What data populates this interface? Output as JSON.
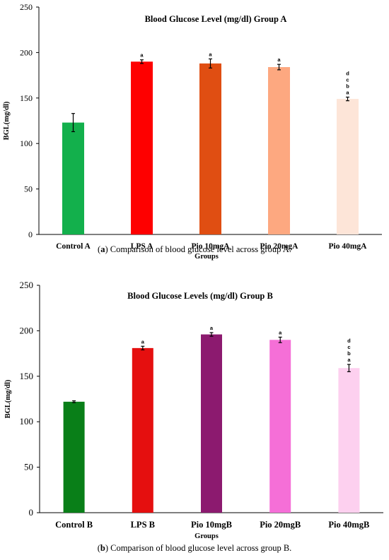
{
  "chart_data": [
    {
      "type": "bar",
      "title": "Blood Glucose Level (mg/dl) Group A",
      "xlabel": "Groups",
      "ylabel": "BGL(mg/dl)",
      "ylim": [
        0,
        250
      ],
      "yticks": [
        "0",
        "50",
        "100",
        "150",
        "200",
        "250"
      ],
      "grid": false,
      "categories": [
        "Control A",
        "LPS A",
        "Pio 10mgA",
        "Pio 20mgA",
        "Pio 40mgA"
      ],
      "values": [
        123,
        190,
        188,
        184,
        149
      ],
      "errors": [
        10,
        2,
        5,
        3,
        2
      ],
      "colors": [
        "#13b04c",
        "#fe0000",
        "#e04e12",
        "#fda880",
        "#fde5d8"
      ],
      "annotations": [
        [],
        [
          "a"
        ],
        [
          "a"
        ],
        [
          "a"
        ],
        [
          "d",
          "c",
          "b",
          "a"
        ]
      ]
    },
    {
      "type": "bar",
      "title": "Blood Glucose Levels (mg/dl) Group B",
      "xlabel": "Groups",
      "ylabel": "BGL(mg/dl)",
      "ylim": [
        0,
        250
      ],
      "yticks": [
        "0",
        "50",
        "100",
        "150",
        "200",
        "250"
      ],
      "grid": false,
      "categories": [
        "Control B",
        "LPS B",
        "Pio 10mgB",
        "Pio 20mgB",
        "Pio 40mgB"
      ],
      "values": [
        122,
        181,
        196,
        190,
        159
      ],
      "errors": [
        1,
        2,
        2,
        3,
        4
      ],
      "colors": [
        "#097f18",
        "#e50f0f",
        "#8c1a6f",
        "#f56fd7",
        "#fdd0ef"
      ],
      "annotations": [
        [],
        [
          "a"
        ],
        [
          "a"
        ],
        [
          "a"
        ],
        [
          "d",
          "c",
          "b",
          "a"
        ]
      ]
    }
  ],
  "captions": [
    {
      "prefix": "(",
      "letter": "a",
      "suffix": ") Comparison of blood glucose level across group A."
    },
    {
      "prefix": "(",
      "letter": "b",
      "suffix": ") Comparison of blood glucose level across group B."
    }
  ]
}
